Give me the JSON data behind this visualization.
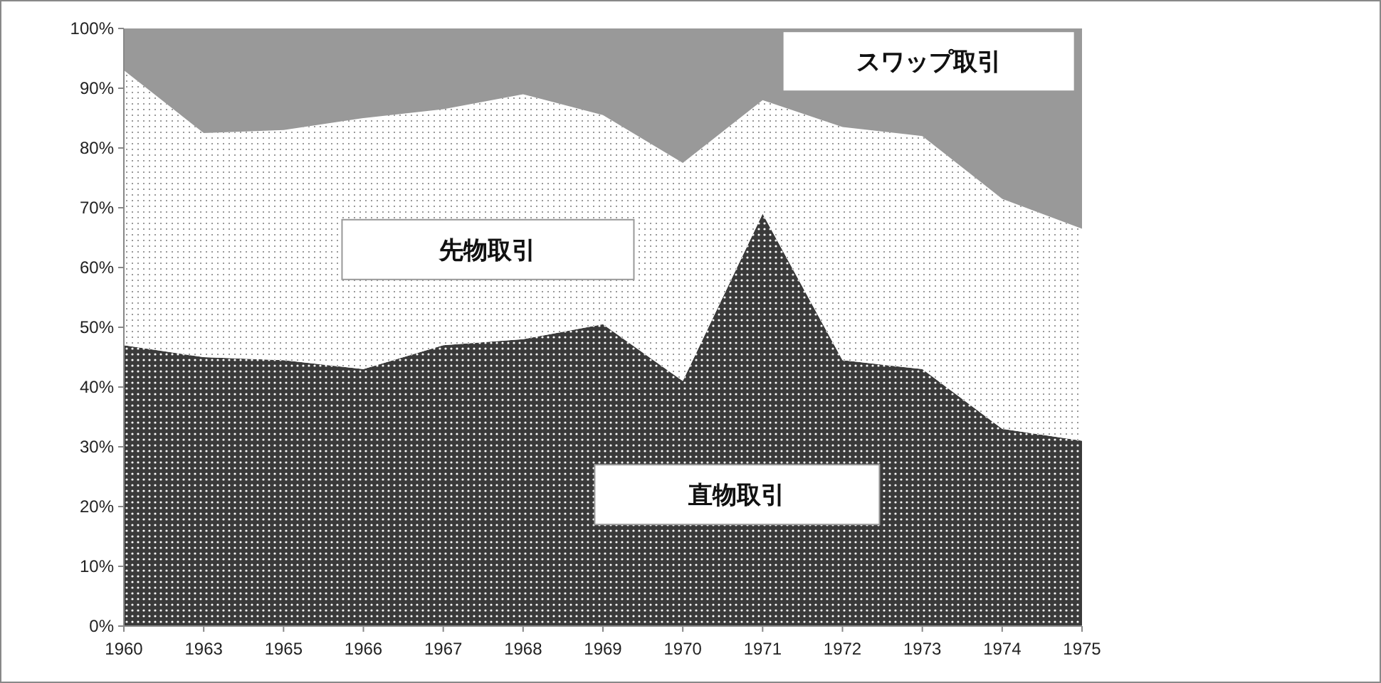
{
  "chart_data": {
    "type": "area",
    "stacked": true,
    "grid": false,
    "categories": [
      "1960",
      "1963",
      "1965",
      "1966",
      "1967",
      "1968",
      "1969",
      "1970",
      "1971",
      "1972",
      "1973",
      "1974",
      "1975"
    ],
    "ylim": [
      0,
      100
    ],
    "yticks": [
      {
        "value": 0,
        "label": "0%"
      },
      {
        "value": 10,
        "label": "10%"
      },
      {
        "value": 20,
        "label": "20%"
      },
      {
        "value": 30,
        "label": "30%"
      },
      {
        "value": 40,
        "label": "40%"
      },
      {
        "value": 50,
        "label": "50%"
      },
      {
        "value": 60,
        "label": "60%"
      },
      {
        "value": 70,
        "label": "70%"
      },
      {
        "value": 80,
        "label": "80%"
      },
      {
        "value": 90,
        "label": "90%"
      },
      {
        "value": 100,
        "label": "100%"
      }
    ],
    "series": [
      {
        "name": "直物取引",
        "color": "#3a3a3a",
        "values": [
          47,
          45,
          44.5,
          43,
          47,
          48,
          50.5,
          41,
          69,
          44.5,
          43,
          33,
          31
        ]
      },
      {
        "name": "先物取引",
        "color": "#ffffff",
        "values": [
          46,
          37.5,
          38.5,
          42,
          39.5,
          41,
          35,
          36.5,
          19,
          39,
          39,
          38.5,
          35.5
        ]
      },
      {
        "name": "スワップ取引",
        "color": "#999999",
        "values": [
          7,
          17.5,
          17,
          15,
          13.5,
          11,
          14.5,
          22.5,
          12,
          16.5,
          18,
          28.5,
          33.5
        ]
      }
    ]
  }
}
